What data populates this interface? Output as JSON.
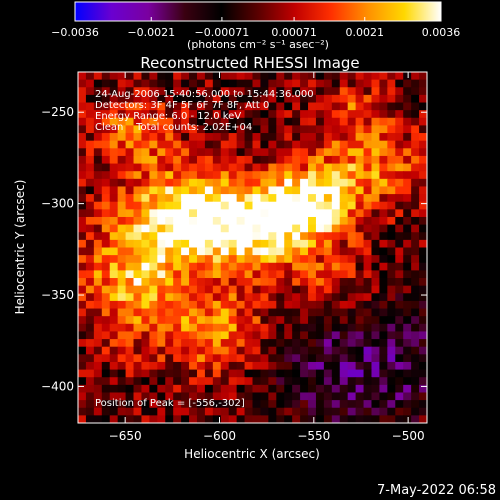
{
  "chart_data": {
    "type": "heatmap",
    "title": "Reconstructed RHESSI Image",
    "xlabel": "Heliocentric X (arcsec)",
    "ylabel": "Heliocentric Y (arcsec)",
    "xlim": [
      -675,
      -490
    ],
    "ylim": [
      -420,
      -228
    ],
    "x_ticks": [
      -650,
      -600,
      -550,
      -500
    ],
    "x_tick_labels": [
      "−650",
      "−600",
      "−550",
      "−500"
    ],
    "y_ticks": [
      -250,
      -300,
      -350,
      -400
    ],
    "y_tick_labels": [
      "−250",
      "−300",
      "−350",
      "−400"
    ],
    "colorbar": {
      "range": [
        -0.0036,
        0.0036
      ],
      "ticks": [
        -0.0036,
        -0.0021,
        -0.00071,
        0.00071,
        0.0021,
        0.0036
      ],
      "tick_labels": [
        "−0.0036",
        "−0.0021",
        "−0.00071",
        "0.00071",
        "0.0021",
        "0.0036"
      ],
      "unit_label": "(photons cm⁻² s⁻¹ asec⁻²)",
      "colormap": [
        "#0000ff",
        "#6a00d0",
        "#7a00a0",
        "#3a0010",
        "#000000",
        "#5a0000",
        "#c00000",
        "#ff3000",
        "#ff9000",
        "#ffd800",
        "#ffffff"
      ]
    },
    "annotations": [
      "24-Aug-2006 15:40:56.000 to 15:44:36.000",
      "Detectors: 3F 4F 5F 6F 7F 8F, Att 0",
      "Energy Range: 6.0 - 12.0 keV",
      "Clean    Total counts: 2.02E+04"
    ],
    "peak_label": "Position of Peak = [-556,-302]",
    "peak": [
      -556,
      -302
    ],
    "grid_size": [
      44,
      46
    ],
    "emission_sources": [
      {
        "x": -556,
        "y": -302,
        "amp": 1.0,
        "sx": 18,
        "sy": 14
      },
      {
        "x": -615,
        "y": -305,
        "amp": 0.88,
        "sx": 22,
        "sy": 18
      },
      {
        "x": -645,
        "y": -340,
        "amp": 0.72,
        "sx": 20,
        "sy": 24
      },
      {
        "x": -585,
        "y": -318,
        "amp": 0.7,
        "sx": 20,
        "sy": 16
      },
      {
        "x": -520,
        "y": -280,
        "amp": 0.55,
        "sx": 22,
        "sy": 16
      },
      {
        "x": -600,
        "y": -370,
        "amp": 0.6,
        "sx": 20,
        "sy": 16
      },
      {
        "x": -645,
        "y": -262,
        "amp": 0.5,
        "sx": 16,
        "sy": 14
      },
      {
        "x": -540,
        "y": -345,
        "amp": 0.42,
        "sx": 18,
        "sy": 16
      },
      {
        "x": -530,
        "y": -248,
        "amp": 0.35,
        "sx": 14,
        "sy": 10
      }
    ],
    "negative_region": {
      "x": -525,
      "y": -385,
      "amp": -0.5,
      "sx": 35,
      "sy": 30
    }
  },
  "footer": {
    "date": "7-May-2022 06:58"
  }
}
